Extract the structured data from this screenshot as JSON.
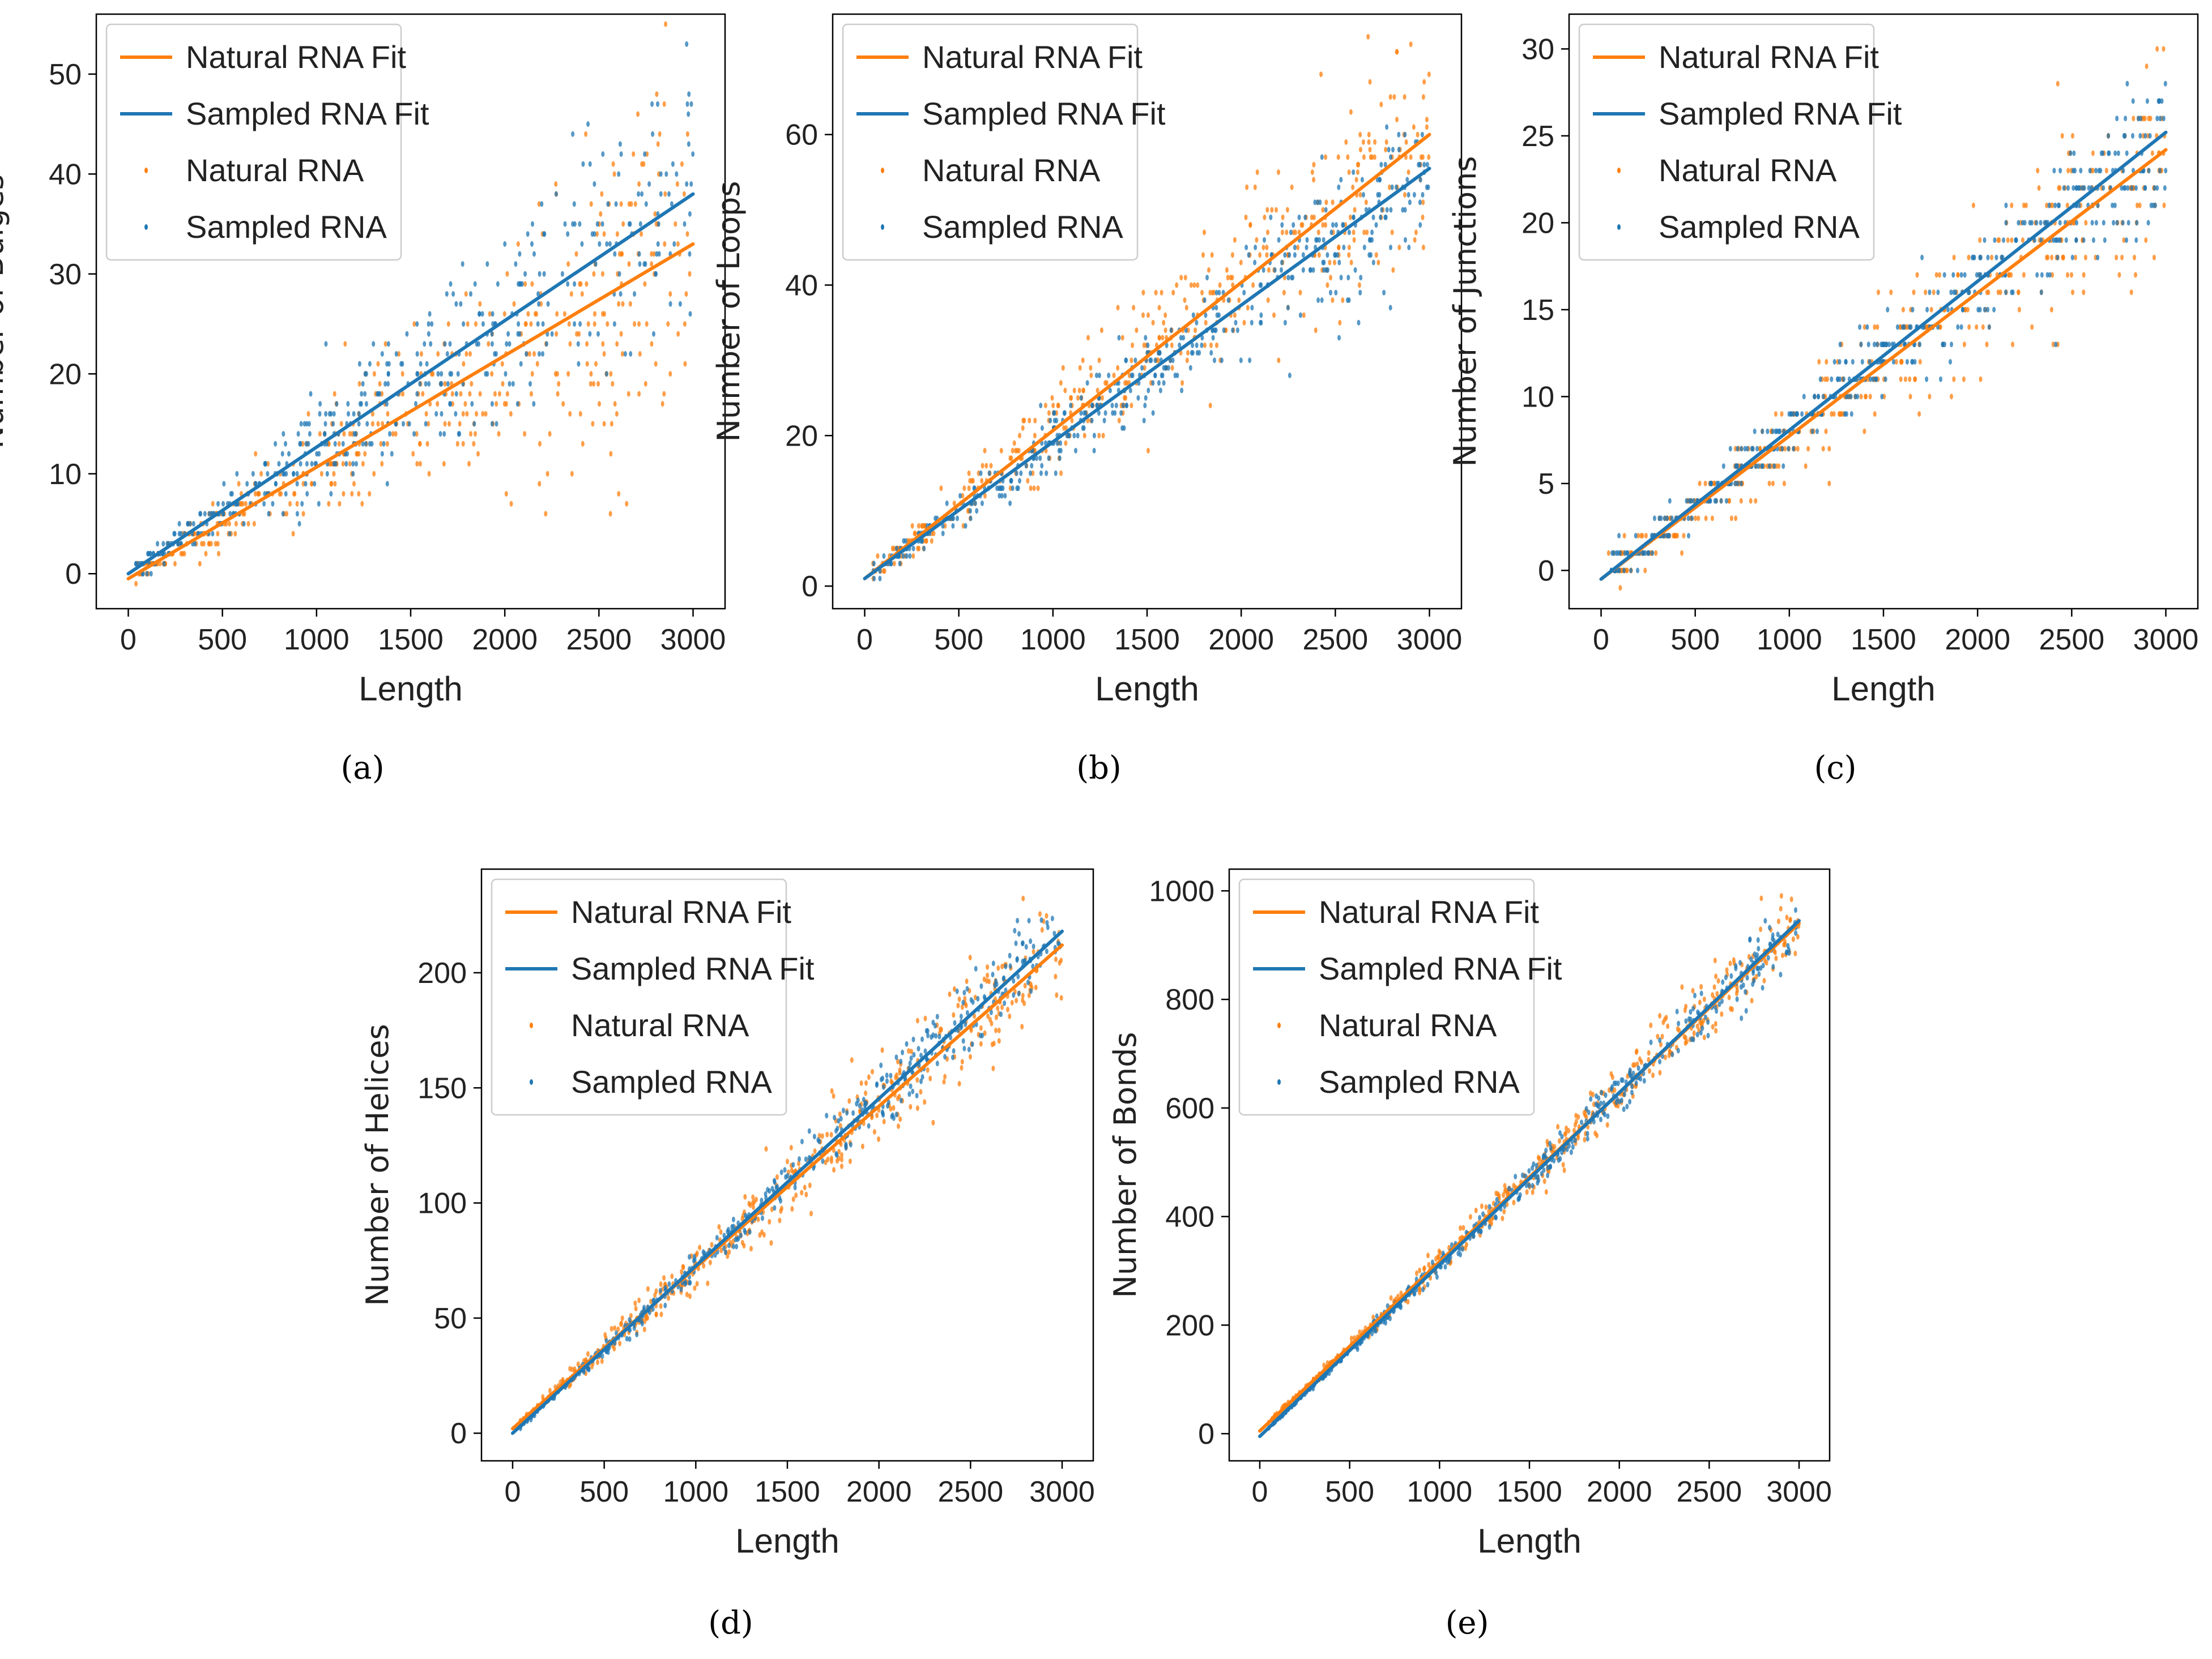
{
  "colors": {
    "natural": "#ff7f0e",
    "sampled": "#1f77b4",
    "axis": "#000000"
  },
  "legend_labels": [
    "Natural RNA Fit",
    "Sampled RNA Fit",
    "Natural RNA",
    "Sampled RNA"
  ],
  "chart_data": [
    {
      "type": "scatter",
      "panel": "(a)",
      "title": "",
      "xlabel": "Length",
      "ylabel": "Number of Bulges",
      "xlim": [
        -170,
        3170
      ],
      "ylim": [
        -3.5,
        56
      ],
      "xticks": [
        0,
        500,
        1000,
        1500,
        2000,
        2500,
        3000
      ],
      "yticks": [
        0,
        10,
        20,
        30,
        40,
        50
      ],
      "legend": "upper-left",
      "series": [
        {
          "name": "Natural RNA Fit",
          "kind": "line",
          "x": [
            0,
            3000
          ],
          "y": [
            -0.5,
            33
          ]
        },
        {
          "name": "Sampled RNA Fit",
          "kind": "line",
          "x": [
            0,
            3000
          ],
          "y": [
            0,
            38
          ]
        },
        {
          "name": "Natural RNA",
          "kind": "scatter",
          "slope": 0.011,
          "intercept": -0.5,
          "spread": 0.3,
          "integer": true,
          "n": 460
        },
        {
          "name": "Sampled RNA",
          "kind": "scatter",
          "slope": 0.0127,
          "intercept": 0,
          "spread": 0.2,
          "integer": true,
          "n": 460
        }
      ]
    },
    {
      "type": "scatter",
      "panel": "(b)",
      "title": "",
      "xlabel": "Length",
      "ylabel": "Number of Loops",
      "xlim": [
        -170,
        3170
      ],
      "ylim": [
        -3,
        76
      ],
      "xticks": [
        0,
        500,
        1000,
        1500,
        2000,
        2500,
        3000
      ],
      "yticks": [
        0,
        20,
        40,
        60
      ],
      "legend": "upper-left",
      "series": [
        {
          "name": "Natural RNA Fit",
          "kind": "line",
          "x": [
            0,
            3000
          ],
          "y": [
            1,
            60
          ]
        },
        {
          "name": "Sampled RNA Fit",
          "kind": "line",
          "x": [
            0,
            3000
          ],
          "y": [
            1,
            55.5
          ]
        },
        {
          "name": "Natural RNA",
          "kind": "scatter",
          "slope": 0.0197,
          "intercept": 1,
          "spread": 0.14,
          "integer": true,
          "n": 460
        },
        {
          "name": "Sampled RNA",
          "kind": "scatter",
          "slope": 0.0182,
          "intercept": 1,
          "spread": 0.1,
          "integer": true,
          "n": 460
        }
      ]
    },
    {
      "type": "scatter",
      "panel": "(c)",
      "title": "",
      "xlabel": "Length",
      "ylabel": "Number of Junctions",
      "xlim": [
        -170,
        3170
      ],
      "ylim": [
        -2.2,
        32
      ],
      "xticks": [
        0,
        500,
        1000,
        1500,
        2000,
        2500,
        3000
      ],
      "yticks": [
        0,
        5,
        10,
        15,
        20,
        25,
        30
      ],
      "legend": "upper-left",
      "series": [
        {
          "name": "Natural RNA Fit",
          "kind": "line",
          "x": [
            0,
            3000
          ],
          "y": [
            -0.5,
            24.2
          ]
        },
        {
          "name": "Sampled RNA Fit",
          "kind": "line",
          "x": [
            0,
            3000
          ],
          "y": [
            -0.5,
            25.2
          ]
        },
        {
          "name": "Natural RNA",
          "kind": "scatter",
          "slope": 0.0082,
          "intercept": -0.5,
          "spread": 0.14,
          "integer": true,
          "n": 460
        },
        {
          "name": "Sampled RNA",
          "kind": "scatter",
          "slope": 0.0086,
          "intercept": -0.5,
          "spread": 0.1,
          "integer": true,
          "n": 460
        }
      ]
    },
    {
      "type": "scatter",
      "panel": "(d)",
      "title": "",
      "xlabel": "Length",
      "ylabel": "Number of Helices",
      "xlim": [
        -170,
        3170
      ],
      "ylim": [
        -12,
        245
      ],
      "xticks": [
        0,
        500,
        1000,
        1500,
        2000,
        2500,
        3000
      ],
      "yticks": [
        0,
        50,
        100,
        150,
        200
      ],
      "legend": "upper-left",
      "series": [
        {
          "name": "Natural RNA Fit",
          "kind": "line",
          "x": [
            0,
            3000
          ],
          "y": [
            2,
            212
          ]
        },
        {
          "name": "Sampled RNA Fit",
          "kind": "line",
          "x": [
            0,
            3000
          ],
          "y": [
            0,
            218
          ]
        },
        {
          "name": "Natural RNA",
          "kind": "scatter",
          "slope": 0.0703,
          "intercept": 2,
          "spread": 0.07,
          "integer": false,
          "n": 460
        },
        {
          "name": "Sampled RNA",
          "kind": "scatter",
          "slope": 0.0727,
          "intercept": 0,
          "spread": 0.04,
          "integer": false,
          "n": 460
        }
      ]
    },
    {
      "type": "scatter",
      "panel": "(e)",
      "title": "",
      "xlabel": "Length",
      "ylabel": "Number of Bonds",
      "xlim": [
        -170,
        3170
      ],
      "ylim": [
        -50,
        1040
      ],
      "xticks": [
        0,
        500,
        1000,
        1500,
        2000,
        2500,
        3000
      ],
      "yticks": [
        0,
        200,
        400,
        600,
        800,
        1000
      ],
      "legend": "upper-left",
      "series": [
        {
          "name": "Natural RNA Fit",
          "kind": "line",
          "x": [
            0,
            3000
          ],
          "y": [
            5,
            940
          ]
        },
        {
          "name": "Sampled RNA Fit",
          "kind": "line",
          "x": [
            0,
            3000
          ],
          "y": [
            -5,
            945
          ]
        },
        {
          "name": "Natural RNA",
          "kind": "scatter",
          "slope": 0.3117,
          "intercept": 5,
          "spread": 0.04,
          "integer": false,
          "n": 460
        },
        {
          "name": "Sampled RNA",
          "kind": "scatter",
          "slope": 0.3167,
          "intercept": -5,
          "spread": 0.03,
          "integer": false,
          "n": 460
        }
      ]
    }
  ]
}
